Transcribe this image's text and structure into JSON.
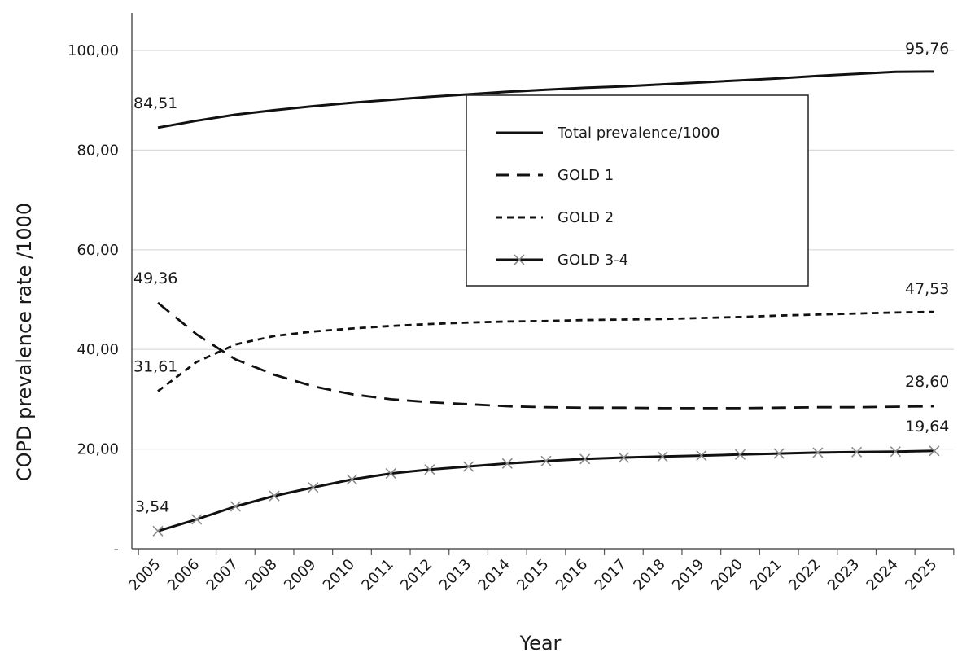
{
  "chart_data": {
    "type": "line",
    "title": "",
    "xlabel": "Year",
    "ylabel": "COPD prevalence  rate /1000",
    "x": [
      "2005",
      "2006",
      "2007",
      "2008",
      "2009",
      "2010",
      "2011",
      "2012",
      "2013",
      "2014",
      "2015",
      "2016",
      "2017",
      "2018",
      "2019",
      "2020",
      "2021",
      "2022",
      "2023",
      "2024",
      "2025"
    ],
    "ylim": [
      0,
      100
    ],
    "yticks": [
      "-",
      "20,00",
      "40,00",
      "60,00",
      "80,00",
      "100,00"
    ],
    "grid": "horizontal",
    "legend_position": "center",
    "series": [
      {
        "name": "Total prevalence/1000",
        "style": "solid",
        "values": [
          84.51,
          85.9,
          87.1,
          88.0,
          88.8,
          89.5,
          90.1,
          90.7,
          91.2,
          91.7,
          92.1,
          92.5,
          92.8,
          93.2,
          93.6,
          94.0,
          94.4,
          94.9,
          95.3,
          95.7,
          95.76
        ]
      },
      {
        "name": "GOLD 1",
        "style": "long-dash",
        "values": [
          49.36,
          43.0,
          38.0,
          34.9,
          32.6,
          31.0,
          30.0,
          29.4,
          29.0,
          28.6,
          28.4,
          28.3,
          28.3,
          28.2,
          28.2,
          28.2,
          28.3,
          28.4,
          28.4,
          28.5,
          28.6
        ]
      },
      {
        "name": "GOLD 2",
        "style": "short-dash",
        "values": [
          31.61,
          37.5,
          41.0,
          42.7,
          43.6,
          44.2,
          44.7,
          45.1,
          45.4,
          45.6,
          45.7,
          45.9,
          46.0,
          46.1,
          46.3,
          46.5,
          46.8,
          47.0,
          47.2,
          47.4,
          47.53
        ]
      },
      {
        "name": "GOLD 3-4",
        "style": "solid-x",
        "values": [
          3.54,
          5.9,
          8.5,
          10.6,
          12.3,
          13.9,
          15.1,
          15.9,
          16.5,
          17.1,
          17.6,
          18.0,
          18.3,
          18.5,
          18.7,
          18.9,
          19.1,
          19.3,
          19.4,
          19.5,
          19.64
        ]
      }
    ],
    "annotations": [
      {
        "series": 0,
        "point": 0,
        "text": "84,51"
      },
      {
        "series": 0,
        "point": 20,
        "text": "95,76"
      },
      {
        "series": 1,
        "point": 0,
        "text": "49,36"
      },
      {
        "series": 1,
        "point": 20,
        "text": "28,60"
      },
      {
        "series": 2,
        "point": 0,
        "text": "31,61"
      },
      {
        "series": 2,
        "point": 20,
        "text": "47,53"
      },
      {
        "series": 3,
        "point": 0,
        "text": "3,54"
      },
      {
        "series": 3,
        "point": 20,
        "text": "19,64"
      }
    ]
  }
}
